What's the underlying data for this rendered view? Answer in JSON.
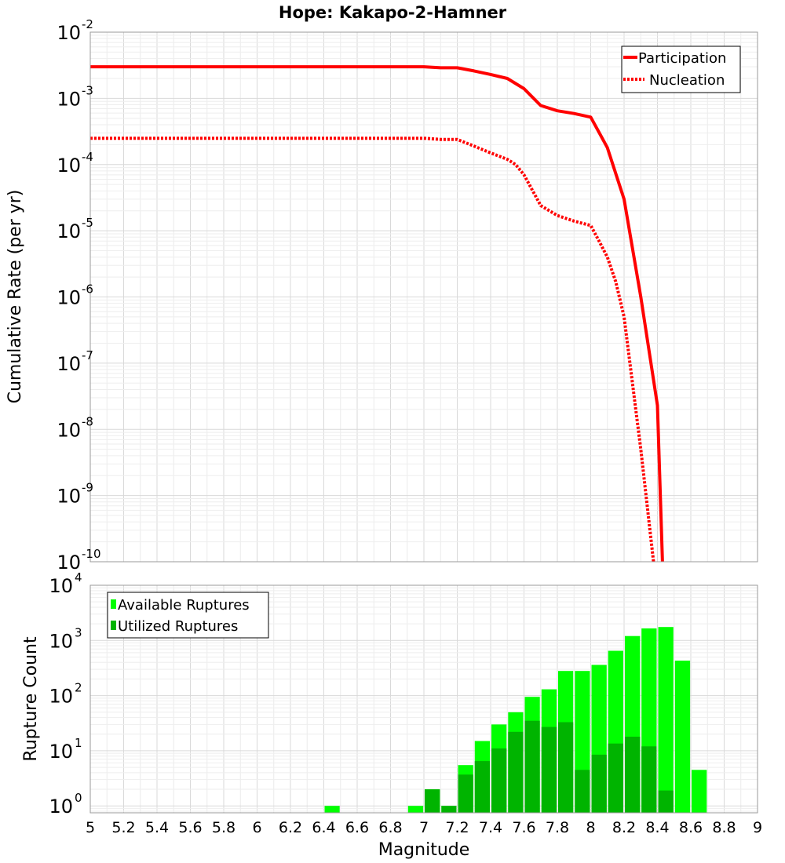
{
  "chart_data": [
    {
      "type": "line",
      "title": "Hope: Kakapo-2-Hamner",
      "xlabel": "",
      "ylabel": "Cumulative Rate (per yr)",
      "xlim": [
        5,
        9
      ],
      "ylim": [
        1e-10,
        0.01
      ],
      "yscale": "log",
      "grid": true,
      "legend_position": "top-right",
      "series": [
        {
          "name": "Participation",
          "style": "solid",
          "color": "#ff0000",
          "x": [
            5.0,
            6.0,
            7.0,
            7.1,
            7.2,
            7.3,
            7.4,
            7.5,
            7.6,
            7.7,
            7.8,
            7.9,
            8.0,
            8.1,
            8.2,
            8.3,
            8.4,
            8.43
          ],
          "y": [
            0.003,
            0.003,
            0.003,
            0.0029,
            0.0029,
            0.0026,
            0.0023,
            0.002,
            0.0014,
            0.00078,
            0.00065,
            0.00059,
            0.00052,
            0.00018,
            3e-05,
            1e-06,
            2.3e-08,
            1e-10
          ]
        },
        {
          "name": "Nucleation",
          "style": "dotted",
          "color": "#ff0000",
          "x": [
            5.0,
            6.0,
            7.0,
            7.1,
            7.2,
            7.3,
            7.4,
            7.5,
            7.55,
            7.6,
            7.7,
            7.8,
            7.9,
            8.0,
            8.05,
            8.1,
            8.15,
            8.2,
            8.3,
            8.4,
            8.42
          ],
          "y": [
            0.00025,
            0.00025,
            0.00025,
            0.00024,
            0.00024,
            0.00019,
            0.00015,
            0.00012,
            0.0001,
            7e-05,
            2.4e-05,
            1.7e-05,
            1.4e-05,
            1.2e-05,
            7e-06,
            4e-06,
            1.7e-06,
            5e-07,
            5e-09,
            3e-11,
            1e-10
          ]
        }
      ]
    },
    {
      "type": "bar",
      "title": "",
      "xlabel": "Magnitude",
      "ylabel": "Rupture Count",
      "xlim": [
        5,
        9
      ],
      "ylim": [
        0.75,
        10000
      ],
      "yscale": "log",
      "grid": true,
      "legend_position": "top-left",
      "bin_width": 0.1,
      "x_ticks": [
        "5",
        "5.2",
        "5.4",
        "5.6",
        "5.8",
        "6",
        "6.2",
        "6.4",
        "6.6",
        "6.8",
        "7",
        "7.2",
        "7.4",
        "7.6",
        "7.8",
        "8",
        "8.2",
        "8.4",
        "8.6",
        "8.8",
        "9"
      ],
      "y_ticks": [
        "10^0",
        "10^1",
        "10^2",
        "10^3",
        "10^4"
      ],
      "series": [
        {
          "name": "Available Ruptures",
          "color": "#00ff00",
          "x": [
            6.45,
            6.95,
            7.05,
            7.15,
            7.25,
            7.35,
            7.45,
            7.55,
            7.65,
            7.75,
            7.85,
            7.95,
            8.05,
            8.15,
            8.25,
            8.35,
            8.45,
            8.55,
            8.65
          ],
          "values": [
            1,
            1,
            2,
            1,
            5.5,
            15,
            30,
            50,
            95,
            130,
            280,
            280,
            360,
            650,
            1200,
            1650,
            1750,
            430,
            4.5
          ]
        },
        {
          "name": "Utilized Ruptures",
          "color": "#00b400",
          "x": [
            7.05,
            7.15,
            7.25,
            7.35,
            7.45,
            7.55,
            7.65,
            7.75,
            7.85,
            7.95,
            8.05,
            8.15,
            8.25,
            8.35,
            8.45
          ],
          "values": [
            2,
            1,
            3.7,
            6.5,
            11,
            22,
            35,
            27,
            33,
            4.5,
            8.5,
            13.5,
            18,
            12,
            1.9
          ]
        }
      ]
    }
  ]
}
